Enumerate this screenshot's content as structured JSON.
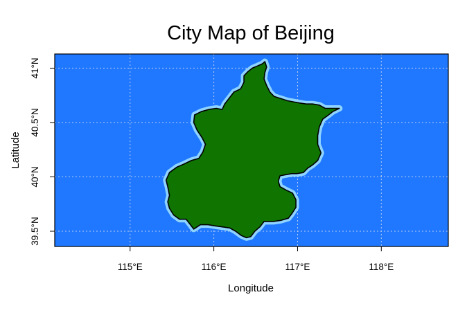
{
  "map": {
    "title": "City Map of Beijing",
    "xlabel": "Longitude",
    "ylabel": "Latitude",
    "colors": {
      "ocean": "#1f78ff",
      "land": "#0f7500",
      "halo": "#8fd3ff",
      "border": "#000000",
      "grid": "#b9cdf2"
    },
    "bounds": {
      "lon": [
        114.1,
        118.8
      ],
      "lat": [
        39.36,
        41.13
      ]
    },
    "x_ticks": [
      {
        "value": 115,
        "label": "115°E"
      },
      {
        "value": 116,
        "label": "116°E"
      },
      {
        "value": 117,
        "label": "117°E"
      },
      {
        "value": 118,
        "label": "118°E"
      }
    ],
    "y_ticks": [
      {
        "value": 39.5,
        "label": "39.5°N"
      },
      {
        "value": 40,
        "label": "40°N"
      },
      {
        "value": 40.5,
        "label": "40.5°N"
      },
      {
        "value": 41,
        "label": "41°N"
      }
    ],
    "grid": true,
    "region": {
      "name": "Beijing",
      "outline": [
        [
          116.61,
          41.06
        ],
        [
          116.63,
          41.01
        ],
        [
          116.61,
          40.96
        ],
        [
          116.6,
          40.9
        ],
        [
          116.63,
          40.84
        ],
        [
          116.67,
          40.78
        ],
        [
          116.72,
          40.74
        ],
        [
          116.8,
          40.72
        ],
        [
          116.88,
          40.7
        ],
        [
          116.95,
          40.69
        ],
        [
          117.02,
          40.68
        ],
        [
          117.1,
          40.67
        ],
        [
          117.18,
          40.67
        ],
        [
          117.26,
          40.66
        ],
        [
          117.33,
          40.63
        ],
        [
          117.41,
          40.63
        ],
        [
          117.5,
          40.63
        ],
        [
          117.42,
          40.6
        ],
        [
          117.37,
          40.57
        ],
        [
          117.3,
          40.53
        ],
        [
          117.26,
          40.46
        ],
        [
          117.24,
          40.38
        ],
        [
          117.24,
          40.3
        ],
        [
          117.28,
          40.22
        ],
        [
          117.24,
          40.15
        ],
        [
          117.18,
          40.11
        ],
        [
          117.12,
          40.08
        ],
        [
          117.07,
          40.04
        ],
        [
          116.99,
          40.03
        ],
        [
          116.93,
          40.03
        ],
        [
          116.86,
          40.02
        ],
        [
          116.79,
          40.01
        ],
        [
          116.77,
          39.96
        ],
        [
          116.79,
          39.91
        ],
        [
          116.86,
          39.88
        ],
        [
          116.94,
          39.85
        ],
        [
          116.98,
          39.79
        ],
        [
          116.98,
          39.72
        ],
        [
          116.93,
          39.66
        ],
        [
          116.89,
          39.62
        ],
        [
          116.8,
          39.6
        ],
        [
          116.71,
          39.59
        ],
        [
          116.6,
          39.59
        ],
        [
          116.55,
          39.54
        ],
        [
          116.49,
          39.5
        ],
        [
          116.44,
          39.45
        ],
        [
          116.39,
          39.44
        ],
        [
          116.33,
          39.46
        ],
        [
          116.26,
          39.5
        ],
        [
          116.19,
          39.53
        ],
        [
          116.1,
          39.54
        ],
        [
          116.01,
          39.55
        ],
        [
          115.93,
          39.56
        ],
        [
          115.84,
          39.56
        ],
        [
          115.76,
          39.52
        ],
        [
          115.72,
          39.56
        ],
        [
          115.67,
          39.61
        ],
        [
          115.59,
          39.61
        ],
        [
          115.52,
          39.65
        ],
        [
          115.47,
          39.71
        ],
        [
          115.45,
          39.77
        ],
        [
          115.47,
          39.83
        ],
        [
          115.45,
          39.91
        ],
        [
          115.43,
          39.97
        ],
        [
          115.47,
          40.04
        ],
        [
          115.56,
          40.09
        ],
        [
          115.65,
          40.12
        ],
        [
          115.73,
          40.15
        ],
        [
          115.82,
          40.17
        ],
        [
          115.87,
          40.23
        ],
        [
          115.9,
          40.3
        ],
        [
          115.86,
          40.36
        ],
        [
          115.8,
          40.43
        ],
        [
          115.76,
          40.5
        ],
        [
          115.77,
          40.57
        ],
        [
          115.85,
          40.6
        ],
        [
          115.94,
          40.62
        ],
        [
          116.03,
          40.63
        ],
        [
          116.1,
          40.62
        ],
        [
          116.13,
          40.67
        ],
        [
          116.19,
          40.73
        ],
        [
          116.24,
          40.78
        ],
        [
          116.32,
          40.81
        ],
        [
          116.36,
          40.87
        ],
        [
          116.36,
          40.93
        ],
        [
          116.41,
          40.97
        ],
        [
          116.46,
          41.0
        ],
        [
          116.52,
          41.02
        ],
        [
          116.58,
          41.04
        ],
        [
          116.61,
          41.06
        ]
      ]
    }
  }
}
